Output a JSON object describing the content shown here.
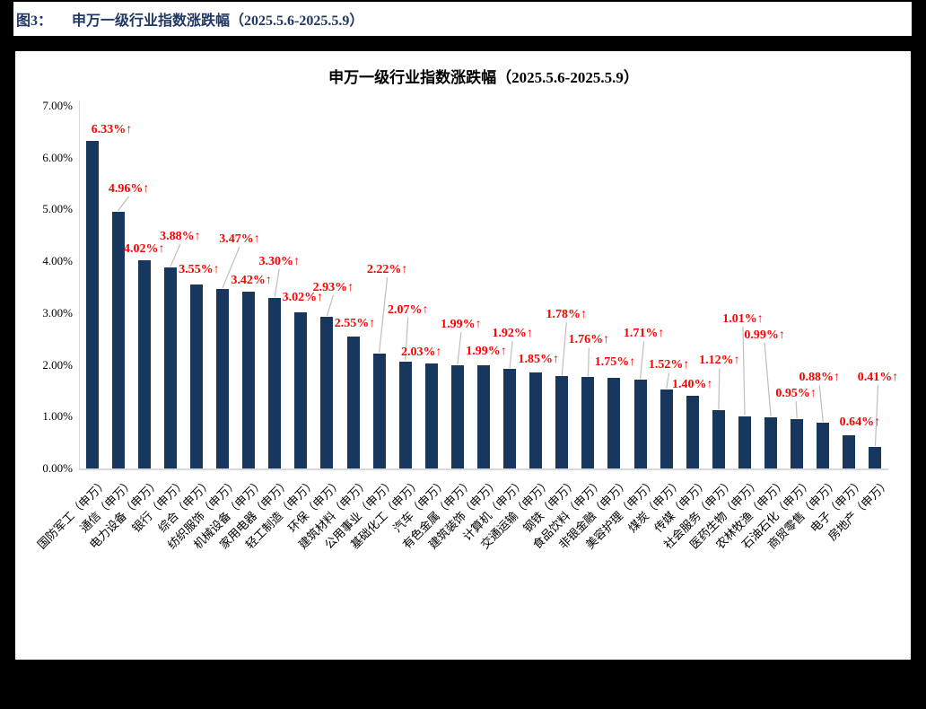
{
  "page": {
    "figure_label": "图3：",
    "figure_title": "申万一级行业指数涨跌幅（2025.5.6-2025.5.9）"
  },
  "chart_data": {
    "type": "bar",
    "title": "申万一级行业指数涨跌幅（2025.5.6-2025.5.9）",
    "categories": [
      "国防军工（申万）",
      "通信（申万）",
      "电力设备（申万）",
      "银行（申万）",
      "综合（申万）",
      "纺织服饰（申万）",
      "机械设备（申万）",
      "家用电器（申万）",
      "轻工制造（申万）",
      "环保（申万）",
      "建筑材料（申万）",
      "公用事业（申万）",
      "基础化工（申万）",
      "汽车（申万）",
      "有色金属（申万）",
      "建筑装饰（申万）",
      "计算机（申万）",
      "交通运输（申万）",
      "钢铁（申万）",
      "食品饮料（申万）",
      "非银金融（申万）",
      "美容护理（申万）",
      "煤炭（申万）",
      "传媒（申万）",
      "社会服务（申万）",
      "医药生物（申万）",
      "农林牧渔（申万）",
      "石油石化（申万）",
      "商贸零售（申万）",
      "电子（申万）",
      "房地产（申万）"
    ],
    "values": [
      6.33,
      4.96,
      4.02,
      3.88,
      3.55,
      3.47,
      3.42,
      3.3,
      3.02,
      2.93,
      2.55,
      2.22,
      2.07,
      2.03,
      1.99,
      1.99,
      1.92,
      1.85,
      1.78,
      1.76,
      1.75,
      1.71,
      1.52,
      1.4,
      1.12,
      1.01,
      0.99,
      0.95,
      0.88,
      0.64,
      0.41
    ],
    "data_labels": [
      "6.33%↑",
      "4.96%↑",
      "4.02%↑",
      "3.88%↑",
      "3.55%↑",
      "3.47%↑",
      "3.42%↑",
      "3.30%↑",
      "3.02%↑",
      "2.93%↑",
      "2.55%↑",
      "2.22%↑",
      "2.07%↑",
      "2.03%↑",
      "1.99%↑",
      "1.99%↑",
      "1.92%↑",
      "1.85%↑",
      "1.78%↑",
      "1.76%↑",
      "1.75%↑",
      "1.71%↑",
      "1.52%↑",
      "1.40%↑",
      "1.12%↑",
      "1.01%↑",
      "0.99%↑",
      "0.95%↑",
      "0.88%↑",
      "0.64%↑",
      "0.41%↑"
    ],
    "y_ticks": [
      "0.00%",
      "1.00%",
      "2.00%",
      "3.00%",
      "4.00%",
      "5.00%",
      "6.00%",
      "7.00%"
    ],
    "xlabel": "",
    "ylabel": "",
    "ylim": [
      0,
      7
    ],
    "grid": "off",
    "legend": "none",
    "bar_color": "#17375E",
    "data_label_color": "#FF0000",
    "axis_line_color": "#D9D9D9",
    "leader_line_color": "#BFBFBF",
    "caption_color": "#1F3864"
  }
}
